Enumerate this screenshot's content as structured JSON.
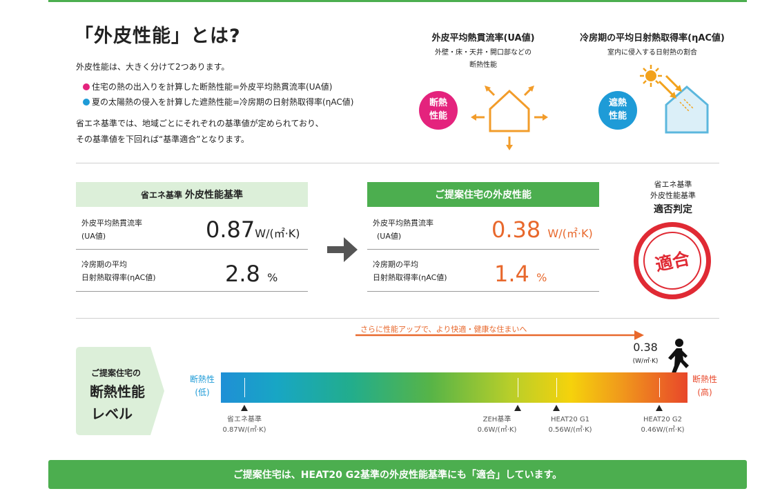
{
  "intro": {
    "title": "「外皮性能」とは?",
    "line1": "外皮性能は、大きく分けて2つあります。",
    "bullet1": "住宅の熱の出入りを計算した断熱性能=外皮平均熱貫流率(UA値)",
    "bullet2": "夏の太陽熱の侵入を計算した遮熱性能=冷房期の日射熱取得率(ηAC値)",
    "line2": "省エネ基準では、地域ごとにそれぞれの基準値が定められており、",
    "line3": "その基準値を下回れば“基準適合”となります。",
    "colors": {
      "magenta": "#e4237d",
      "blue": "#1e9bd7",
      "green": "#4cae4f",
      "orange": "#e8682c"
    }
  },
  "diagrams": {
    "ua": {
      "title": "外皮平均熱貫流率(UA値)",
      "sub1": "外壁・床・天井・開口部などの",
      "sub2": "断熱性能",
      "badge1": "断熱",
      "badge2": "性能"
    },
    "eta": {
      "title": "冷房期の平均日射熱取得率(ηAC値)",
      "sub1": "室内に侵入する日射熱の割合",
      "badge1": "遮熱",
      "badge2": "性能"
    }
  },
  "standard": {
    "header_small": "省エネ基準",
    "header_big": "外皮性能基準",
    "row1_label1": "外皮平均熱貫流率",
    "row1_label2": "(UA値)",
    "row1_value": "0.87",
    "row1_unit": "W/(㎡·K)",
    "row2_label1": "冷房期の平均",
    "row2_label2": "日射熱取得率(ηAC値)",
    "row2_value": "2.8",
    "row2_unit": "%"
  },
  "proposal": {
    "header": "ご提案住宅の外皮性能",
    "row1_label1": "外皮平均熱貫流率",
    "row1_label2": "(UA値)",
    "row1_value": "0.38",
    "row1_unit": "W/(㎡·K)",
    "row2_label1": "冷房期の平均",
    "row2_label2": "日射熱取得率(ηAC値)",
    "row2_value": "1.4",
    "row2_unit": "%"
  },
  "judgement": {
    "line1": "省エネ基準",
    "line2": "外皮性能基準",
    "line3": "適否判定",
    "stamp": "適合"
  },
  "level": {
    "panel1": "ご提案住宅の",
    "panel2": "断熱性能",
    "panel3": "レベル",
    "arrow_text": "さらに性能アップで、より快適・健康な住まいへ",
    "current_value": "0.38",
    "current_unit": "(W/㎡·K)",
    "left1": "断熱性",
    "left2": "(低)",
    "right1": "断熱性",
    "right2": "(高)",
    "markers": [
      {
        "name": "省エネ基準",
        "value": "0.87W/(㎡·K)"
      },
      {
        "name": "ZEH基準",
        "value": "0.6W/(㎡·K)"
      },
      {
        "name": "HEAT20 G1",
        "value": "0.56W/(㎡·K)"
      },
      {
        "name": "HEAT20 G2",
        "value": "0.46W/(㎡·K)"
      }
    ]
  },
  "footer": {
    "text": "ご提案住宅は、HEAT20 G2基準の外皮性能基準にも「適合」しています。"
  }
}
